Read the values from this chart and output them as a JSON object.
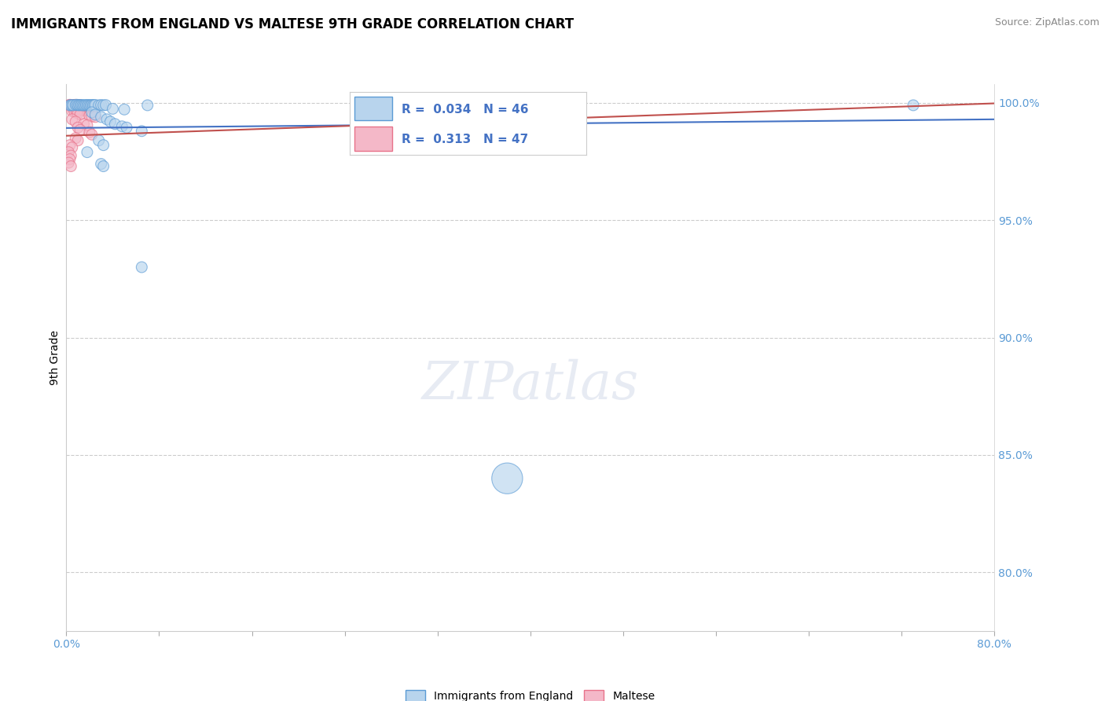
{
  "title": "IMMIGRANTS FROM ENGLAND VS MALTESE 9TH GRADE CORRELATION CHART",
  "source": "Source: ZipAtlas.com",
  "ylabel": "9th Grade",
  "xlim": [
    0.0,
    0.8
  ],
  "ylim": [
    0.775,
    1.008
  ],
  "xticks": [
    0.0,
    0.08,
    0.16,
    0.24,
    0.32,
    0.4,
    0.48,
    0.56,
    0.64,
    0.72,
    0.8
  ],
  "xtick_labels_show": [
    "0.0%",
    "",
    "",
    "",
    "",
    "",
    "",
    "",
    "",
    "",
    "80.0%"
  ],
  "yticks": [
    0.8,
    0.85,
    0.9,
    0.95,
    1.0
  ],
  "ytick_labels": [
    "80.0%",
    "85.0%",
    "90.0%",
    "95.0%",
    "100.0%"
  ],
  "corr_R1": "0.034",
  "corr_N1": "46",
  "corr_R2": "0.313",
  "corr_N2": "47",
  "blue_face": "#b8d4ed",
  "blue_edge": "#5b9bd5",
  "pink_face": "#f4b8c8",
  "pink_edge": "#e8728a",
  "trend_blue": "#4472c4",
  "trend_pink": "#c0504d",
  "ytick_color": "#5b9bd5",
  "xtick_color": "#5b9bd5",
  "watermark": "ZIPatlas",
  "england_points": [
    [
      0.003,
      0.999
    ],
    [
      0.004,
      0.999
    ],
    [
      0.005,
      0.9991
    ],
    [
      0.006,
      0.999
    ],
    [
      0.008,
      0.9991
    ],
    [
      0.009,
      0.9992
    ],
    [
      0.01,
      0.999
    ],
    [
      0.011,
      0.9991
    ],
    [
      0.012,
      0.999
    ],
    [
      0.013,
      0.9991
    ],
    [
      0.014,
      0.999
    ],
    [
      0.015,
      0.999
    ],
    [
      0.016,
      0.999
    ],
    [
      0.017,
      0.9991
    ],
    [
      0.018,
      0.999
    ],
    [
      0.019,
      0.9991
    ],
    [
      0.02,
      0.999
    ],
    [
      0.021,
      0.999
    ],
    [
      0.022,
      0.9991
    ],
    [
      0.023,
      0.999
    ],
    [
      0.024,
      0.9991
    ],
    [
      0.025,
      0.9991
    ],
    [
      0.028,
      0.999
    ],
    [
      0.03,
      0.9991
    ],
    [
      0.032,
      0.999
    ],
    [
      0.034,
      0.9991
    ],
    [
      0.07,
      0.999
    ],
    [
      0.04,
      0.9975
    ],
    [
      0.05,
      0.9972
    ],
    [
      0.022,
      0.996
    ],
    [
      0.025,
      0.995
    ],
    [
      0.03,
      0.994
    ],
    [
      0.035,
      0.993
    ],
    [
      0.038,
      0.992
    ],
    [
      0.042,
      0.991
    ],
    [
      0.048,
      0.99
    ],
    [
      0.052,
      0.9895
    ],
    [
      0.065,
      0.988
    ],
    [
      0.028,
      0.984
    ],
    [
      0.032,
      0.982
    ],
    [
      0.018,
      0.979
    ],
    [
      0.03,
      0.974
    ],
    [
      0.032,
      0.973
    ],
    [
      0.065,
      0.93
    ],
    [
      0.38,
      0.84
    ],
    [
      0.73,
      0.999
    ]
  ],
  "maltese_points": [
    [
      0.002,
      0.999
    ],
    [
      0.003,
      0.9992
    ],
    [
      0.004,
      0.9991
    ],
    [
      0.005,
      0.999
    ],
    [
      0.006,
      0.9991
    ],
    [
      0.007,
      0.999
    ],
    [
      0.008,
      0.9992
    ],
    [
      0.009,
      0.9991
    ],
    [
      0.01,
      0.999
    ],
    [
      0.011,
      0.9991
    ],
    [
      0.012,
      0.999
    ],
    [
      0.015,
      0.9985
    ],
    [
      0.016,
      0.9985
    ],
    [
      0.018,
      0.9984
    ],
    [
      0.02,
      0.9983
    ],
    [
      0.022,
      0.9982
    ],
    [
      0.005,
      0.998
    ],
    [
      0.006,
      0.9978
    ],
    [
      0.008,
      0.9975
    ],
    [
      0.01,
      0.9972
    ],
    [
      0.012,
      0.997
    ],
    [
      0.015,
      0.9968
    ],
    [
      0.005,
      0.9965
    ],
    [
      0.007,
      0.9963
    ],
    [
      0.009,
      0.996
    ],
    [
      0.01,
      0.9955
    ],
    [
      0.012,
      0.995
    ],
    [
      0.02,
      0.9945
    ],
    [
      0.022,
      0.9942
    ],
    [
      0.025,
      0.994
    ],
    [
      0.005,
      0.993
    ],
    [
      0.008,
      0.992
    ],
    [
      0.015,
      0.991
    ],
    [
      0.018,
      0.9905
    ],
    [
      0.01,
      0.9895
    ],
    [
      0.012,
      0.9885
    ],
    [
      0.02,
      0.9875
    ],
    [
      0.022,
      0.9865
    ],
    [
      0.008,
      0.985
    ],
    [
      0.01,
      0.984
    ],
    [
      0.003,
      0.982
    ],
    [
      0.005,
      0.981
    ],
    [
      0.002,
      0.979
    ],
    [
      0.004,
      0.9775
    ],
    [
      0.003,
      0.976
    ],
    [
      0.002,
      0.9745
    ],
    [
      0.004,
      0.973
    ]
  ],
  "england_sizes": [
    100,
    100,
    100,
    100,
    100,
    100,
    100,
    100,
    100,
    100,
    100,
    100,
    100,
    100,
    100,
    100,
    100,
    100,
    100,
    100,
    100,
    100,
    100,
    100,
    100,
    100,
    100,
    100,
    100,
    100,
    100,
    100,
    100,
    100,
    100,
    100,
    100,
    100,
    100,
    100,
    100,
    100,
    100,
    100,
    800,
    100
  ],
  "maltese_sizes": [
    100,
    100,
    100,
    100,
    100,
    100,
    100,
    100,
    100,
    100,
    100,
    100,
    100,
    100,
    100,
    100,
    100,
    100,
    100,
    100,
    100,
    100,
    100,
    100,
    100,
    100,
    100,
    100,
    100,
    100,
    100,
    100,
    100,
    100,
    100,
    100,
    100,
    100,
    100,
    100,
    100,
    100,
    100,
    100,
    100,
    100,
    100
  ]
}
